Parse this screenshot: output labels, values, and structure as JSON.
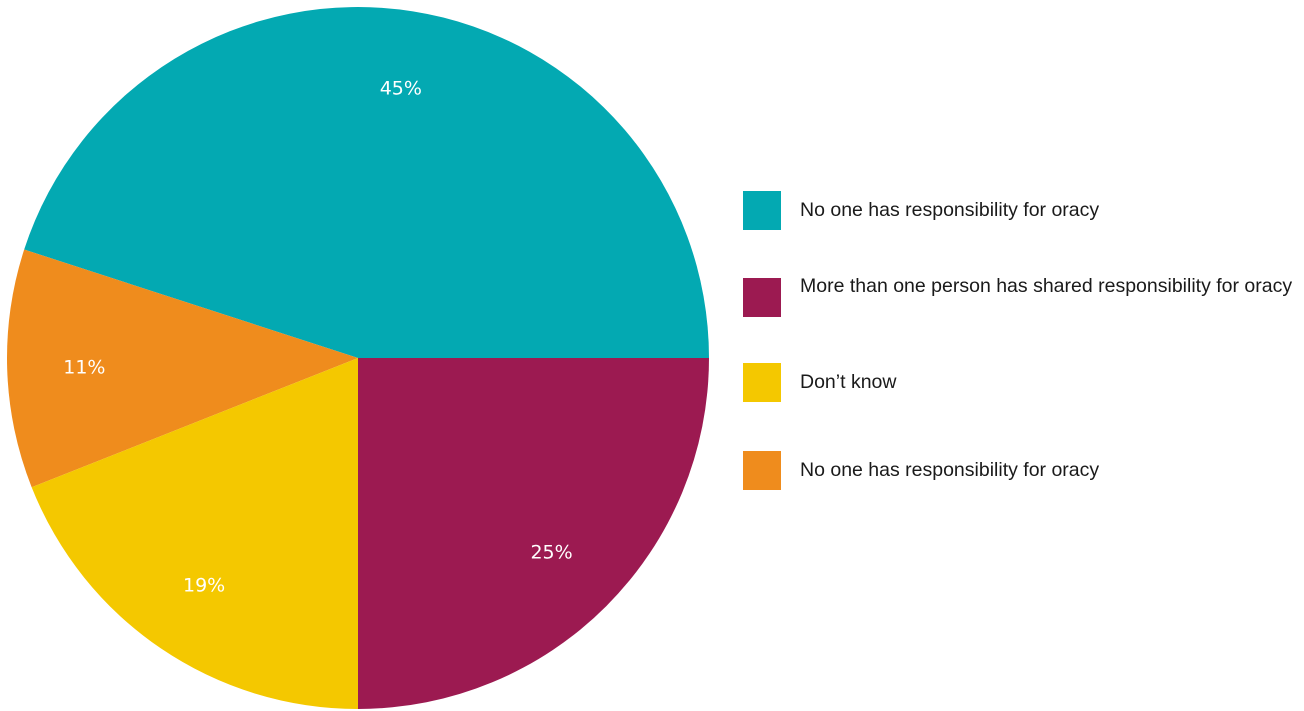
{
  "chart_data": {
    "type": "pie",
    "slices": [
      {
        "label": "No one has responsibility for oracy",
        "value": 45,
        "value_label": "45%",
        "color": "#03a9b2"
      },
      {
        "label": "More than one person has shared responsibility for oracy",
        "value": 25,
        "value_label": "25%",
        "color": "#9c1a51"
      },
      {
        "label": "Don’t know",
        "value": 19,
        "value_label": "19%",
        "color": "#f4c800"
      },
      {
        "label": "No one has responsibility for oracy",
        "value": 11,
        "value_label": "11%",
        "color": "#ef8c1d"
      }
    ],
    "legend": {
      "placement": "right",
      "items": [
        {
          "label": "No one has responsibility for oracy",
          "color": "#03a9b2"
        },
        {
          "label": "More than one person has shared responsibility for oracy",
          "color": "#9c1a51"
        },
        {
          "label": "Don’t know",
          "color": "#f4c800"
        },
        {
          "label": "No one has responsibility for oracy",
          "color": "#ef8c1d"
        }
      ]
    }
  }
}
